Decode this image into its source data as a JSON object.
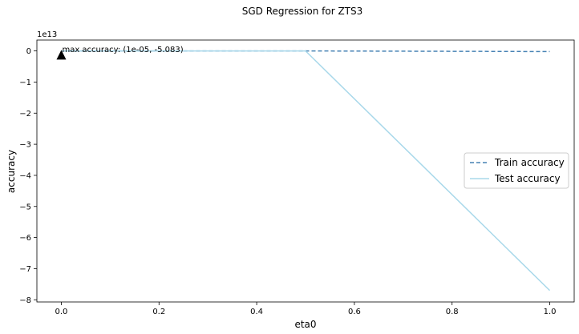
{
  "chart_data": {
    "type": "line",
    "title": "SGD Regression for ZTS3",
    "xlabel": "eta0",
    "ylabel": "accuracy",
    "y_offset_label": "1e13",
    "xlim": [
      -0.05,
      1.05
    ],
    "ylim": [
      -8.07,
      0.35
    ],
    "x_ticks": [
      0.0,
      0.2,
      0.4,
      0.6,
      0.8,
      1.0
    ],
    "x_tick_labels": [
      "0.0",
      "0.2",
      "0.4",
      "0.6",
      "0.8",
      "1.0"
    ],
    "y_ticks": [
      0,
      -1,
      -2,
      -3,
      -4,
      -5,
      -6,
      -7,
      -8
    ],
    "y_tick_labels": [
      "0",
      "−1",
      "−2",
      "−3",
      "−4",
      "−5",
      "−6",
      "−7",
      "−8"
    ],
    "legend_position": "center-right",
    "series": [
      {
        "name": "Train accuracy",
        "color": "#4682b4",
        "style": "dashed",
        "x": [
          1e-05,
          0.5,
          1.0
        ],
        "y": [
          0.0,
          0.0,
          -0.02
        ]
      },
      {
        "name": "Test accuracy",
        "color": "#a8d8ea",
        "style": "solid",
        "x": [
          1e-05,
          0.5,
          1.0
        ],
        "y": [
          0.0,
          0.0,
          -7.7
        ]
      }
    ],
    "annotation": {
      "text": "max accuracy: (1e-05, -5.083)",
      "x": 1e-05,
      "y": -0.15,
      "marker": "triangle-up"
    }
  }
}
